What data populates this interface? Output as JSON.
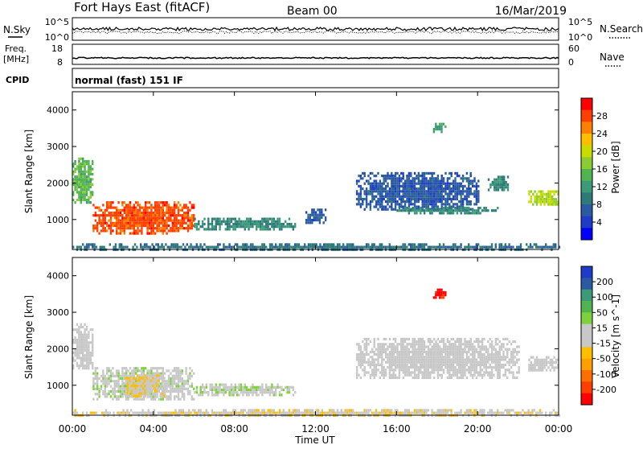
{
  "header": {
    "title": "Fort Hays East (fitACF)",
    "beam": "Beam 00",
    "date": "16/Mar/2019"
  },
  "summary_panels": {
    "sky_label": "N.Sky",
    "search_label": "N.Search",
    "sky_ticks": [
      "10^5",
      "10^0"
    ],
    "search_ticks": [
      "10^5",
      "10^0"
    ],
    "freq_label": "Freq.",
    "freq_unit": "[MHz]",
    "freq_ticks": [
      "18",
      "8"
    ],
    "nave_label": "Nave",
    "nave_ticks": [
      "60",
      "0"
    ],
    "cpid_label": "CPID",
    "cpid_text": "normal (fast) 151 IF"
  },
  "time_axis": {
    "label": "Time UT",
    "ticks": [
      "00:00",
      "04:00",
      "08:00",
      "12:00",
      "16:00",
      "20:00",
      "00:00"
    ]
  },
  "range_axis": {
    "label": "Slant Range [km]",
    "ticks": [
      "4000",
      "3000",
      "2000",
      "1000"
    ]
  },
  "power_colorbar": {
    "label": "Power [dB]",
    "ticks": [
      "28",
      "24",
      "20",
      "16",
      "12",
      "8",
      "4"
    ],
    "colors": [
      "#ff0000",
      "#ff3f00",
      "#ff7f00",
      "#ffbf00",
      "#c8dc00",
      "#8ccc32",
      "#50b450",
      "#3c9a78",
      "#2d7a78",
      "#2a5aa0",
      "#1e3cc8",
      "#0000ff"
    ]
  },
  "velocity_colorbar": {
    "label": "Velocity [m s^-1]",
    "ticks": [
      "200",
      "100",
      "50",
      "15",
      "-15",
      "-50",
      "-100",
      "-200"
    ],
    "colors": [
      "#1e3cc8",
      "#2a5aa0",
      "#3c9a78",
      "#50b450",
      "#7dd23c",
      "#c8c8c8",
      "#c8c8c8",
      "#ffbf00",
      "#ff9f00",
      "#ff6f00",
      "#ff3f00",
      "#ff0000"
    ]
  },
  "chart_data": [
    {
      "type": "heatmap",
      "title": "Power",
      "xlabel": "Time UT",
      "ylabel": "Slant Range [km]",
      "xlim": [
        "00:00",
        "24:00"
      ],
      "ylim": [
        180,
        4500
      ],
      "colorbar": {
        "label": "Power [dB]",
        "range": [
          0,
          30
        ]
      },
      "regions": [
        {
          "t_start": 1.0,
          "t_end": 6.0,
          "range_start": 650,
          "range_end": 1500,
          "value_db": 26
        },
        {
          "t_start": 6.0,
          "t_end": 11.0,
          "range_start": 750,
          "range_end": 1050,
          "value_db": 10
        },
        {
          "t_start": 0.0,
          "t_end": 1.0,
          "range_start": 1450,
          "range_end": 2700,
          "value_db": 14
        },
        {
          "t_start": 0.0,
          "t_end": 24.0,
          "range_start": 200,
          "range_end": 350,
          "value_db": 8
        },
        {
          "t_start": 11.5,
          "t_end": 12.5,
          "range_start": 900,
          "range_end": 1300,
          "value_db": 6
        },
        {
          "t_start": 14.0,
          "t_end": 20.0,
          "range_start": 1300,
          "range_end": 2300,
          "value_db": 6
        },
        {
          "t_start": 16.0,
          "t_end": 21.0,
          "range_start": 1200,
          "range_end": 1350,
          "value_db": 10
        },
        {
          "t_start": 17.8,
          "t_end": 18.4,
          "range_start": 3400,
          "range_end": 3650,
          "value_db": 12
        },
        {
          "t_start": 20.5,
          "t_end": 21.5,
          "range_start": 1800,
          "range_end": 2200,
          "value_db": 10
        },
        {
          "t_start": 22.5,
          "t_end": 24.0,
          "range_start": 1400,
          "range_end": 1800,
          "value_db": 18
        }
      ]
    },
    {
      "type": "heatmap",
      "title": "Velocity",
      "xlabel": "Time UT",
      "ylabel": "Slant Range [km]",
      "xlim": [
        "00:00",
        "24:00"
      ],
      "ylim": [
        180,
        4500
      ],
      "colorbar": {
        "label": "Velocity [m s^-1]",
        "range": [
          -250,
          250
        ]
      },
      "regions": [
        {
          "t_start": 1.0,
          "t_end": 6.0,
          "range_start": 650,
          "range_end": 1500,
          "value_ms": 20
        },
        {
          "t_start": 2.5,
          "t_end": 4.5,
          "range_start": 700,
          "range_end": 1300,
          "value_ms": -30
        },
        {
          "t_start": 6.0,
          "t_end": 11.0,
          "range_start": 750,
          "range_end": 1050,
          "value_ms": 30
        },
        {
          "t_start": 0.0,
          "t_end": 1.0,
          "range_start": 1450,
          "range_end": 2700,
          "value_ms": 0
        },
        {
          "t_start": 0.0,
          "t_end": 24.0,
          "range_start": 200,
          "range_end": 350,
          "value_ms": -30
        },
        {
          "t_start": 14.0,
          "t_end": 22.0,
          "range_start": 1200,
          "range_end": 2300,
          "value_ms": 0
        },
        {
          "t_start": 17.8,
          "t_end": 18.4,
          "range_start": 3400,
          "range_end": 3650,
          "value_ms": -230
        },
        {
          "t_start": 22.5,
          "t_end": 24.0,
          "range_start": 1400,
          "range_end": 1800,
          "value_ms": 0
        }
      ]
    }
  ]
}
